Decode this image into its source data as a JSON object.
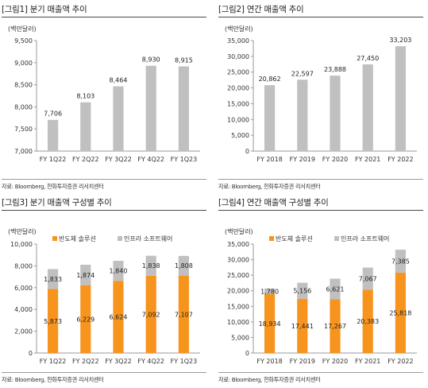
{
  "panels": [
    {
      "title": "[그림1] 분기 매출액 추이",
      "source": "자료: Bloomberg, 한화투자증권 리서치센터",
      "chart_data": {
        "type": "bar",
        "ylabel": "(백만달러)",
        "ylim": [
          7000,
          9500
        ],
        "yticks": [
          7000,
          7500,
          8000,
          8500,
          9000,
          9500
        ],
        "tick_format": "comma",
        "categories": [
          "FY 1Q22",
          "FY 2Q22",
          "FY 3Q22",
          "FY 4Q22",
          "FY 1Q23"
        ],
        "series": [
          {
            "values": [
              7706,
              8103,
              8464,
              8930,
              8915
            ],
            "color": "#c0c0c0"
          }
        ],
        "grid": false,
        "legend": []
      }
    },
    {
      "title": "[그림2] 연간 매출액 추이",
      "source": "자료: Bloomberg, 한화투자증권 리서치센터",
      "chart_data": {
        "type": "bar",
        "ylabel": "(백만달러)",
        "ylim": [
          0,
          35000
        ],
        "yticks": [
          0,
          5000,
          10000,
          15000,
          20000,
          25000,
          30000,
          35000
        ],
        "tick_format": "comma",
        "categories": [
          "FY 2018",
          "FY 2019",
          "FY 2020",
          "FY 2021",
          "FY 2022"
        ],
        "series": [
          {
            "values": [
              20862,
              22597,
              23888,
              27450,
              33203
            ],
            "color": "#c0c0c0"
          }
        ],
        "grid": false,
        "legend": []
      }
    },
    {
      "title": "[그림3] 분기 매출액 구성별 추이",
      "source": "자료: Bloomberg, 한화투자증권 리서치센터",
      "chart_data": {
        "type": "bar",
        "stacked": true,
        "ylabel": "(백만달러)",
        "ylim": [
          0,
          10000
        ],
        "yticks": [
          0,
          2000,
          4000,
          6000,
          8000,
          10000
        ],
        "tick_format": "comma",
        "categories": [
          "FY 1Q22",
          "FY 2Q22",
          "FY 3Q22",
          "FY 4Q22",
          "FY 1Q23"
        ],
        "series": [
          {
            "name": "반도체 솔루션",
            "values": [
              5873,
              6229,
              6624,
              7092,
              7107
            ],
            "color": "#f7941d"
          },
          {
            "name": "인프라 소프트웨어",
            "values": [
              1833,
              1874,
              1840,
              1838,
              1808
            ],
            "color": "#c0c0c0"
          }
        ],
        "grid": false,
        "legend": "top-left"
      }
    },
    {
      "title": "[그림4] 연간 매출액 구성별 추이",
      "source": "자료: Bloomberg, 한화투자증권 리서치센터",
      "chart_data": {
        "type": "bar",
        "stacked": true,
        "ylabel": "(백만달러)",
        "ylim": [
          0,
          35000
        ],
        "yticks": [
          0,
          5000,
          10000,
          15000,
          20000,
          25000,
          30000,
          35000
        ],
        "tick_format": "comma",
        "categories": [
          "FY 2018",
          "FY 2019",
          "FY 2020",
          "FY 2021",
          "FY 2022"
        ],
        "series": [
          {
            "name": "반도체 솔루션",
            "values": [
              18934,
              17441,
              17267,
              20383,
              25818
            ],
            "color": "#f7941d"
          },
          {
            "name": "인프라 소프트웨어",
            "values": [
              1780,
              5156,
              6621,
              7067,
              7385
            ],
            "color": "#c0c0c0"
          }
        ],
        "grid": false,
        "legend": "top-left"
      }
    }
  ]
}
